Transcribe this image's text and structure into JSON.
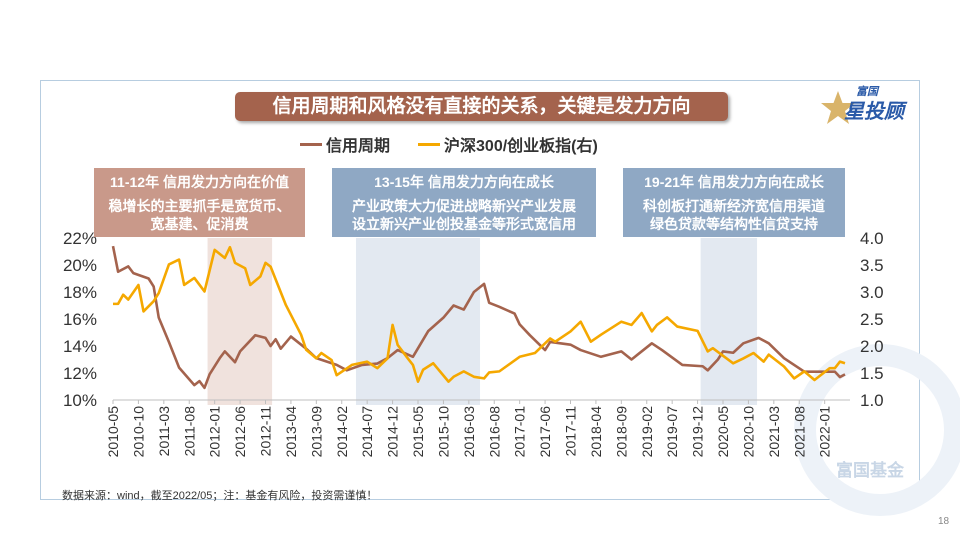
{
  "title": "信用周期和风格没有直接的关系，关键是发力方向",
  "logo": {
    "small": "富国",
    "big": "星投顾"
  },
  "watermark": "富国基金",
  "source": "数据来源：wind，截至2022/05；注：基金有风险，投资需谨慎！",
  "page_number": "18",
  "notes": [
    {
      "heading": "11-12年 信用发力方向在价值",
      "body": [
        "稳增长的主要抓手是宽货币、",
        "宽基建、促消费"
      ],
      "color": "#c9998a"
    },
    {
      "heading": "13-15年 信用发力方向在成长",
      "body": [
        "产业政策大力促进战略新兴产业发展",
        "设立新兴产业创投基金等形式宽信用"
      ],
      "color": "#8fa8c4"
    },
    {
      "heading": "19-21年 信用发力方向在成长",
      "body": [
        "科创板打通新经济宽信用渠道",
        "绿色贷款等结构性信贷支持"
      ],
      "color": "#8fa8c4"
    }
  ],
  "chart_data": {
    "type": "line",
    "x_unit": "months since 2010-05",
    "x_start": "2010-05",
    "x_range": [
      0,
      144
    ],
    "x_tick_labels": [
      "2010-05",
      "2010-10",
      "2011-03",
      "2011-08",
      "2012-01",
      "2012-06",
      "2012-11",
      "2013-04",
      "2013-09",
      "2014-02",
      "2014-07",
      "2014-12",
      "2015-05",
      "2015-10",
      "2016-03",
      "2016-08",
      "2017-01",
      "2017-06",
      "2017-11",
      "2018-04",
      "2018-09",
      "2019-02",
      "2019-07",
      "2019-12",
      "2020-05",
      "2020-10",
      "2021-03",
      "2021-08",
      "2022-01"
    ],
    "y_left": {
      "range": [
        10,
        22
      ],
      "ticks": [
        "10%",
        "12%",
        "14%",
        "16%",
        "18%",
        "20%",
        "22%"
      ]
    },
    "y_right": {
      "range": [
        1.0,
        4.0
      ],
      "ticks": [
        "1.0",
        "1.5",
        "2.0",
        "2.5",
        "3.0",
        "3.5",
        "4.0"
      ]
    },
    "shaded_periods": [
      {
        "from": 18.6,
        "to": 31.3,
        "color": "#f0e2dd"
      },
      {
        "from": 47.8,
        "to": 72.2,
        "color": "#e3e9f1"
      },
      {
        "from": 115.6,
        "to": 126.7,
        "color": "#e3e9f1"
      }
    ],
    "series": [
      {
        "name": "信用周期",
        "axis": "left",
        "color": "#a4634d",
        "points": [
          [
            0,
            21.4
          ],
          [
            1,
            19.5
          ],
          [
            3,
            19.9
          ],
          [
            4,
            19.4
          ],
          [
            7,
            19.0
          ],
          [
            8,
            18.4
          ],
          [
            9,
            16.1
          ],
          [
            11,
            14.3
          ],
          [
            13,
            12.4
          ],
          [
            16,
            11.1
          ],
          [
            17,
            11.4
          ],
          [
            18,
            10.9
          ],
          [
            19,
            11.9
          ],
          [
            21,
            13.1
          ],
          [
            22,
            13.6
          ],
          [
            24,
            12.8
          ],
          [
            25,
            13.6
          ],
          [
            28,
            14.8
          ],
          [
            30,
            14.6
          ],
          [
            31,
            14.0
          ],
          [
            32,
            14.5
          ],
          [
            33,
            13.8
          ],
          [
            35,
            14.7
          ],
          [
            38,
            13.8
          ],
          [
            40,
            13.1
          ],
          [
            44,
            12.6
          ],
          [
            46,
            12.2
          ],
          [
            49,
            12.6
          ],
          [
            52,
            12.7
          ],
          [
            54,
            13.1
          ],
          [
            56,
            13.7
          ],
          [
            59,
            13.2
          ],
          [
            62,
            15.1
          ],
          [
            65,
            16.1
          ],
          [
            67,
            17.0
          ],
          [
            69,
            16.7
          ],
          [
            71,
            18.0
          ],
          [
            73,
            18.6
          ],
          [
            74,
            17.2
          ],
          [
            76,
            16.9
          ],
          [
            79,
            16.4
          ],
          [
            80,
            15.6
          ],
          [
            82,
            14.8
          ],
          [
            85,
            13.7
          ],
          [
            86,
            14.3
          ],
          [
            90,
            14.1
          ],
          [
            92,
            13.7
          ],
          [
            96,
            13.2
          ],
          [
            100,
            13.6
          ],
          [
            102,
            13.0
          ],
          [
            106,
            14.2
          ],
          [
            108,
            13.7
          ],
          [
            112,
            12.6
          ],
          [
            116,
            12.5
          ],
          [
            117,
            12.2
          ],
          [
            119,
            13.0
          ],
          [
            120,
            13.6
          ],
          [
            122,
            13.5
          ],
          [
            124,
            14.2
          ],
          [
            127,
            14.6
          ],
          [
            129,
            14.2
          ],
          [
            132,
            13.1
          ],
          [
            136,
            12.1
          ],
          [
            139,
            12.1
          ],
          [
            142,
            12.1
          ],
          [
            143,
            11.7
          ],
          [
            144,
            11.9
          ]
        ]
      },
      {
        "name": "沪深300/创业板指(右)",
        "axis": "right",
        "color": "#f5a800",
        "points": [
          [
            0,
            2.78
          ],
          [
            1,
            2.78
          ],
          [
            2,
            2.95
          ],
          [
            3,
            2.86
          ],
          [
            5,
            3.13
          ],
          [
            6,
            2.64
          ],
          [
            8,
            2.83
          ],
          [
            9,
            2.98
          ],
          [
            11,
            3.51
          ],
          [
            13,
            3.6
          ],
          [
            14,
            3.13
          ],
          [
            16,
            3.26
          ],
          [
            18,
            3.01
          ],
          [
            20,
            3.78
          ],
          [
            22,
            3.63
          ],
          [
            23,
            3.83
          ],
          [
            24,
            3.54
          ],
          [
            26,
            3.44
          ],
          [
            27,
            3.13
          ],
          [
            29,
            3.29
          ],
          [
            30,
            3.54
          ],
          [
            31,
            3.47
          ],
          [
            34,
            2.76
          ],
          [
            37,
            2.21
          ],
          [
            38,
            1.93
          ],
          [
            40,
            1.77
          ],
          [
            41,
            1.87
          ],
          [
            43,
            1.74
          ],
          [
            44,
            1.46
          ],
          [
            47,
            1.65
          ],
          [
            50,
            1.71
          ],
          [
            52,
            1.59
          ],
          [
            54,
            1.77
          ],
          [
            55,
            2.39
          ],
          [
            56,
            2.02
          ],
          [
            58,
            1.77
          ],
          [
            59,
            1.65
          ],
          [
            60,
            1.34
          ],
          [
            61,
            1.56
          ],
          [
            63,
            1.68
          ],
          [
            66,
            1.34
          ],
          [
            67,
            1.43
          ],
          [
            69,
            1.53
          ],
          [
            71,
            1.43
          ],
          [
            73,
            1.4
          ],
          [
            74,
            1.51
          ],
          [
            76,
            1.53
          ],
          [
            80,
            1.8
          ],
          [
            83,
            1.87
          ],
          [
            86,
            2.14
          ],
          [
            87,
            2.08
          ],
          [
            90,
            2.27
          ],
          [
            92,
            2.45
          ],
          [
            94,
            2.08
          ],
          [
            96,
            2.21
          ],
          [
            100,
            2.45
          ],
          [
            102,
            2.39
          ],
          [
            104,
            2.61
          ],
          [
            106,
            2.27
          ],
          [
            107,
            2.39
          ],
          [
            109,
            2.53
          ],
          [
            111,
            2.36
          ],
          [
            115,
            2.28
          ],
          [
            117,
            1.9
          ],
          [
            118,
            1.96
          ],
          [
            122,
            1.68
          ],
          [
            124,
            1.77
          ],
          [
            126,
            1.87
          ],
          [
            128,
            1.71
          ],
          [
            129,
            1.84
          ],
          [
            132,
            1.62
          ],
          [
            134,
            1.4
          ],
          [
            136,
            1.53
          ],
          [
            138,
            1.37
          ],
          [
            141,
            1.59
          ],
          [
            142,
            1.59
          ],
          [
            143,
            1.71
          ],
          [
            144,
            1.68
          ]
        ]
      }
    ]
  }
}
